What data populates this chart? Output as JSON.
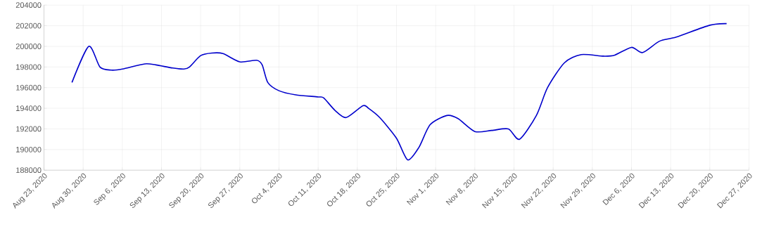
{
  "chart_data": {
    "type": "line",
    "x": [
      "2020-08-28",
      "2020-08-31",
      "2020-09-02",
      "2020-09-04",
      "2020-09-06",
      "2020-09-10",
      "2020-09-12",
      "2020-09-15",
      "2020-09-17",
      "2020-09-18",
      "2020-09-20",
      "2020-09-22",
      "2020-09-24",
      "2020-09-27",
      "2020-09-30",
      "2020-10-01",
      "2020-10-02",
      "2020-10-04",
      "2020-10-07",
      "2020-10-11",
      "2020-10-12",
      "2020-10-14",
      "2020-10-16",
      "2020-10-19",
      "2020-10-20",
      "2020-10-22",
      "2020-10-25",
      "2020-10-27",
      "2020-10-29",
      "2020-10-31",
      "2020-11-03",
      "2020-11-05",
      "2020-11-08",
      "2020-11-11",
      "2020-11-14",
      "2020-11-16",
      "2020-11-19",
      "2020-11-21",
      "2020-11-24",
      "2020-11-27",
      "2020-12-01",
      "2020-12-03",
      "2020-12-06",
      "2020-12-08",
      "2020-12-11",
      "2020-12-14",
      "2020-12-20",
      "2020-12-23"
    ],
    "values": [
      196500,
      200000,
      198000,
      197700,
      197800,
      198300,
      198200,
      197900,
      197800,
      198000,
      199100,
      199350,
      199300,
      198500,
      198650,
      198200,
      196500,
      195700,
      195300,
      195100,
      195000,
      193800,
      193100,
      194250,
      194000,
      193100,
      191100,
      189000,
      190200,
      192400,
      193300,
      193000,
      191750,
      191850,
      192000,
      191000,
      193300,
      196000,
      198400,
      199200,
      199050,
      199150,
      199900,
      199400,
      200500,
      200900,
      202050,
      202200
    ],
    "color": "#0000cc",
    "xlim": [
      "2020-08-23",
      "2020-12-27"
    ],
    "xticks": [
      {
        "value": "2020-08-23",
        "label": "Aug 23, 2020"
      },
      {
        "value": "2020-08-30",
        "label": "Aug 30, 2020"
      },
      {
        "value": "2020-09-06",
        "label": "Sep 6, 2020"
      },
      {
        "value": "2020-09-13",
        "label": "Sep 13, 2020"
      },
      {
        "value": "2020-09-20",
        "label": "Sep 20, 2020"
      },
      {
        "value": "2020-09-27",
        "label": "Sep 27, 2020"
      },
      {
        "value": "2020-10-04",
        "label": "Oct 4, 2020"
      },
      {
        "value": "2020-10-11",
        "label": "Oct 11, 2020"
      },
      {
        "value": "2020-10-18",
        "label": "Oct 18, 2020"
      },
      {
        "value": "2020-10-25",
        "label": "Oct 25, 2020"
      },
      {
        "value": "2020-11-01",
        "label": "Nov 1, 2020"
      },
      {
        "value": "2020-11-08",
        "label": "Nov 8, 2020"
      },
      {
        "value": "2020-11-15",
        "label": "Nov 15, 2020"
      },
      {
        "value": "2020-11-22",
        "label": "Nov 22, 2020"
      },
      {
        "value": "2020-11-29",
        "label": "Nov 29, 2020"
      },
      {
        "value": "2020-12-06",
        "label": "Dec 6, 2020"
      },
      {
        "value": "2020-12-13",
        "label": "Dec 13, 2020"
      },
      {
        "value": "2020-12-20",
        "label": "Dec 20, 2020"
      },
      {
        "value": "2020-12-27",
        "label": "Dec 27, 2020"
      }
    ],
    "ylim": [
      188000,
      204000
    ],
    "yticks": [
      188000,
      190000,
      192000,
      194000,
      196000,
      198000,
      200000,
      202000,
      204000
    ],
    "grid": true
  }
}
